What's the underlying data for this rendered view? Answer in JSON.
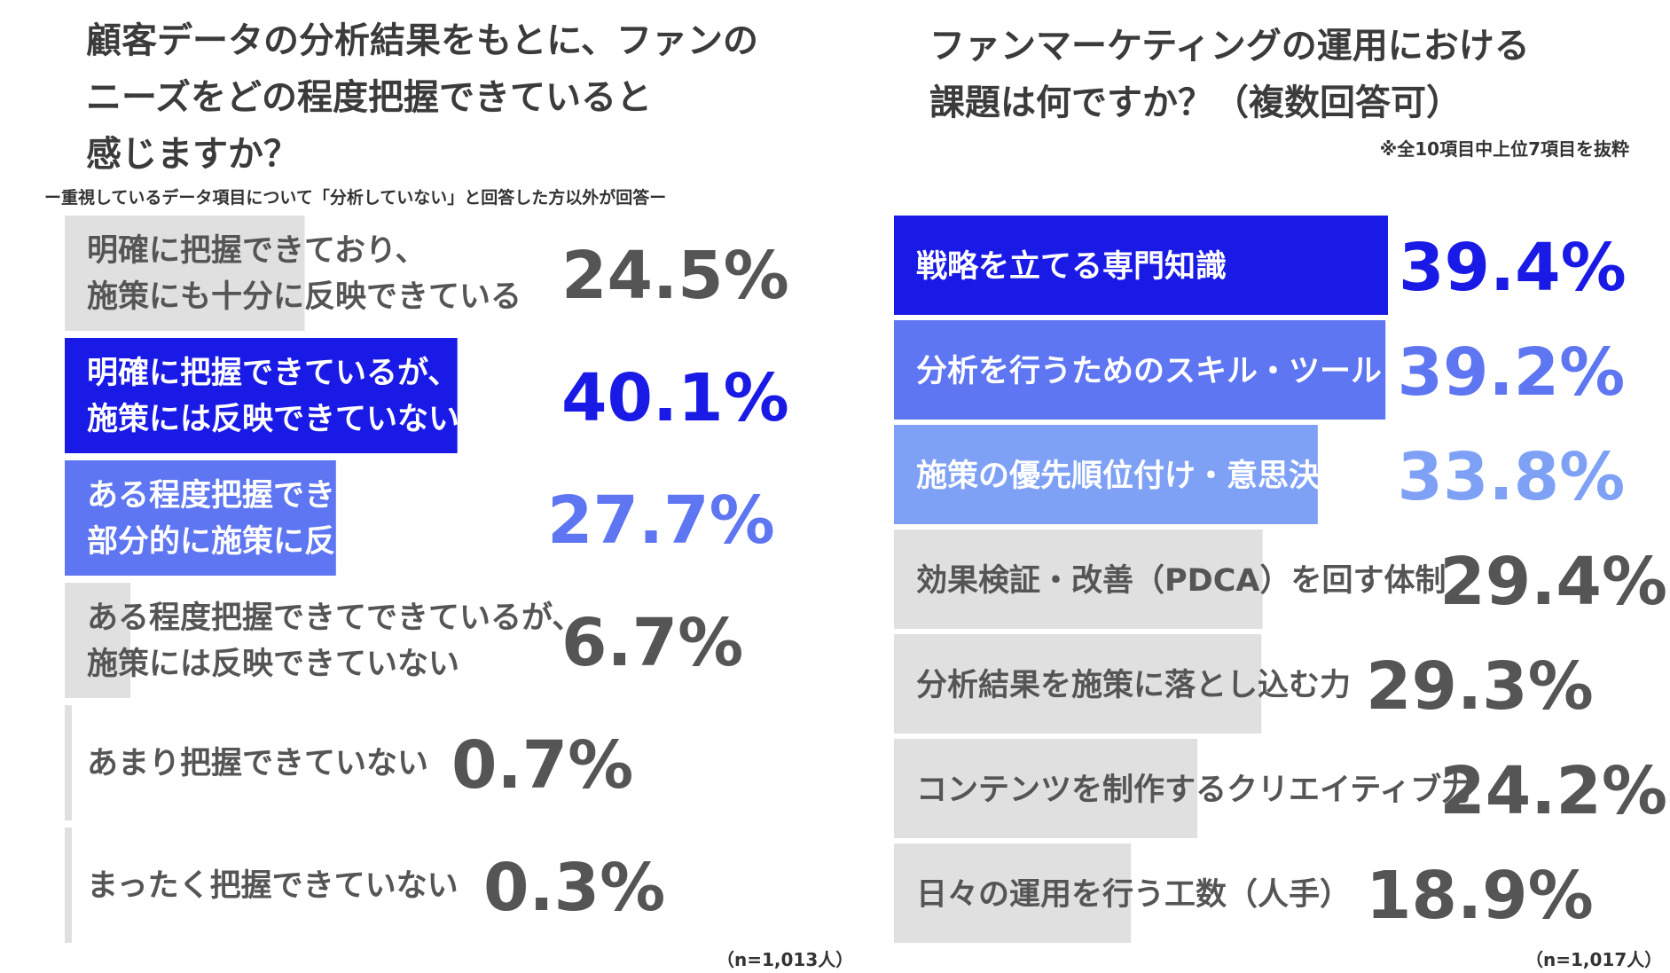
{
  "colors": {
    "highlight": "#1a1ae6",
    "medium": "#5f76f2",
    "light": "#7fa1f5",
    "gray_bar": "#e0e0e0",
    "gray_text": "#555555",
    "white_text": "#ffffff"
  },
  "left": {
    "title_lines": [
      "顧客データの分析結果をもとに、ファンの",
      "ニーズをどの程度把握できていると",
      "感じますか？"
    ],
    "subtitle": "ー重視しているデータ項目について「分析していない」と回答した方以外が回答ー",
    "sample": "（n=1,013人）"
  },
  "right": {
    "title_lines": [
      "ファンマーケティングの運用における",
      "課題は何ですか？（複数回答可）"
    ],
    "note": "※全10項目中上位7項目を抜粋",
    "sample": "（n=1,017人）"
  },
  "chart_data": [
    {
      "type": "bar",
      "orientation": "horizontal",
      "title": "顧客データの分析結果をもとに、ファンのニーズをどの程度把握できていると感じますか？",
      "unit": "%",
      "categories": [
        [
          "明確に把握できており、",
          "施策にも十分に反映できている"
        ],
        [
          "明確に把握できているが、",
          "施策には反映できていない"
        ],
        [
          "ある程度把握できており、",
          "部分的に施策に反映できている"
        ],
        [
          "ある程度把握できてできているが、",
          "施策には反映できていない"
        ],
        [
          "あまり把握できていない"
        ],
        [
          "まったく把握できていない"
        ]
      ],
      "values": [
        24.5,
        40.1,
        27.7,
        6.7,
        0.7,
        0.3
      ],
      "value_labels": [
        "24.5%",
        "40.1%",
        "27.7%",
        "6.7%",
        "0.7%",
        "0.3%"
      ],
      "bar_colors": [
        "gray",
        "highlight",
        "medium",
        "gray",
        "gray",
        "gray"
      ]
    },
    {
      "type": "bar",
      "orientation": "horizontal",
      "title": "ファンマーケティングの運用における課題は何ですか？（複数回答可）",
      "unit": "%",
      "categories": [
        "戦略を立てる専門知識",
        "分析を行うためのスキル・ツール",
        "施策の優先順位付け・意思決定力",
        "効果検証・改善（PDCA）を回す体制",
        "分析結果を施策に落とし込む力",
        "コンテンツを制作するクリエイティブ力",
        "日々の運用を行う工数（人手）"
      ],
      "values": [
        39.4,
        39.2,
        33.8,
        29.4,
        29.3,
        24.2,
        18.9
      ],
      "value_labels": [
        "39.4%",
        "39.2%",
        "33.8%",
        "29.4%",
        "29.3%",
        "24.2%",
        "18.9%"
      ],
      "bar_colors": [
        "highlight",
        "medium",
        "light",
        "gray",
        "gray",
        "gray",
        "gray"
      ]
    }
  ]
}
